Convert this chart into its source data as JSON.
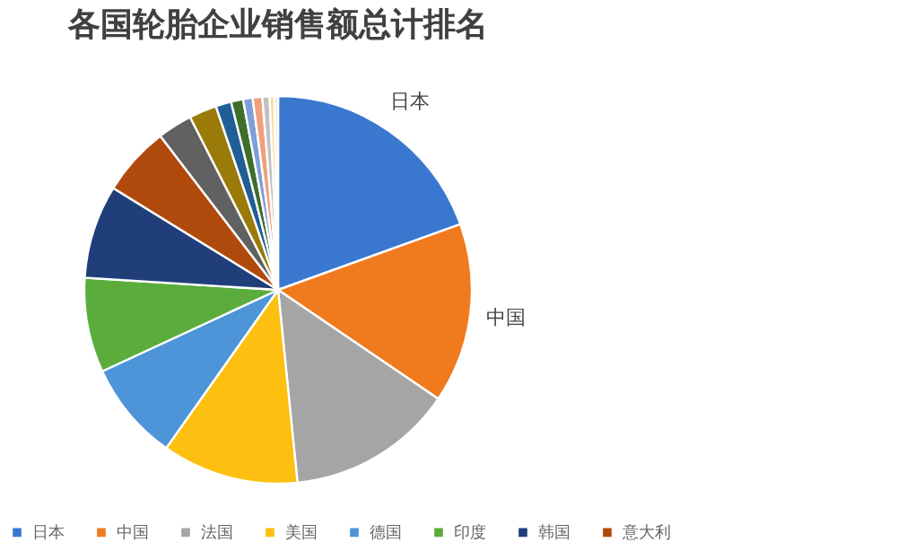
{
  "chart_data": {
    "type": "pie",
    "title": "各国轮胎企业销售额总计排名",
    "categories": [
      "日本",
      "中国",
      "法国",
      "美国",
      "德国",
      "印度",
      "韩国",
      "意大利",
      null,
      null,
      null,
      null,
      null,
      null,
      null,
      null,
      null
    ],
    "values": [
      19.5,
      15.0,
      13.9,
      11.4,
      8.3,
      7.9,
      7.8,
      5.8,
      2.9,
      2.3,
      1.3,
      1.0,
      0.8,
      0.8,
      0.6,
      0.4,
      0.3
    ],
    "colors": [
      "#3a78d0",
      "#f07a1e",
      "#a5a5a5",
      "#fdc010",
      "#4d94d8",
      "#5aad3c",
      "#203f7a",
      "#b04a0c",
      "#616161",
      "#9a7a08",
      "#1f5f95",
      "#3f6e2a",
      "#7f9fd9",
      "#f1a07a",
      "#c0c0c0",
      "#f5e0a0",
      "#e8e8e8"
    ],
    "value_labels": [
      "日本",
      "中国",
      null,
      null,
      null,
      null,
      null,
      null,
      null,
      null,
      null,
      null,
      null,
      null,
      null,
      null,
      null
    ],
    "legend": "bottom"
  }
}
